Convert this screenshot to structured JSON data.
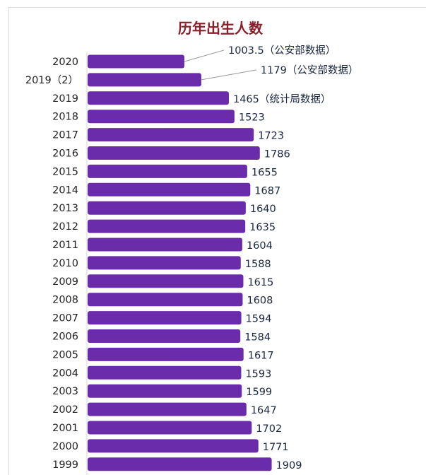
{
  "chart_data": {
    "type": "bar",
    "orientation": "horizontal",
    "title": "历年出生人数",
    "xlabel": "",
    "ylabel": "",
    "bar_color": "#6a2cab",
    "categories": [
      "2020",
      "2019（2）",
      "2019",
      "2018",
      "2017",
      "2016",
      "2015",
      "2014",
      "2013",
      "2012",
      "2011",
      "2010",
      "2009",
      "2008",
      "2007",
      "2006",
      "2005",
      "2004",
      "2003",
      "2002",
      "2001",
      "2000",
      "1999"
    ],
    "values": [
      1003.5,
      1179,
      1465,
      1523,
      1723,
      1786,
      1655,
      1687,
      1640,
      1635,
      1604,
      1588,
      1615,
      1608,
      1594,
      1584,
      1617,
      1593,
      1599,
      1647,
      1702,
      1771,
      1909
    ],
    "value_labels": [
      "1003.5（公安部数据）",
      "1179（公安部数据）",
      "1465（统计局数据）",
      "1523",
      "1723",
      "1786",
      "1655",
      "1687",
      "1640",
      "1635",
      "1604",
      "1588",
      "1615",
      "1608",
      "1594",
      "1584",
      "1617",
      "1593",
      "1599",
      "1647",
      "1702",
      "1771",
      "1909"
    ],
    "grid": false,
    "legend": "none"
  }
}
